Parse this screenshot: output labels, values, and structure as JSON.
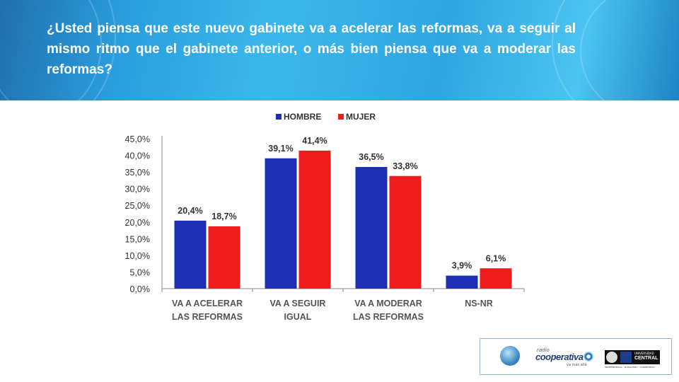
{
  "header": {
    "question": "¿Usted piensa que este nuevo gabinete va a acelerar las reformas, va a seguir al mismo ritmo que el gabinete anterior, o más bien piensa que va a moderar las reformas?"
  },
  "logos": {
    "cooperativa_radio": "radio",
    "cooperativa_name": "cooperativa",
    "cooperativa_tag": "va más allá",
    "ucentral_top": "UNIVERSIDAD",
    "ucentral_name": "CENTRAL",
    "ucentral_sub": "INDEPENDENCIA · PLURALISMO · COMPROMISO"
  },
  "colors": {
    "hombre": "#1c2fb3",
    "mujer": "#ee1c1c",
    "axis": "#888888",
    "text": "#333333"
  },
  "chart_data": {
    "type": "bar",
    "categories": [
      [
        "VA A ACELERAR",
        "LAS  REFORMAS"
      ],
      [
        "VA A SEGUIR",
        "IGUAL"
      ],
      [
        "VA A MODERAR",
        "LAS  REFORMAS"
      ],
      [
        "NS-NR"
      ]
    ],
    "series": [
      {
        "name": "HOMBRE",
        "values": [
          20.4,
          39.1,
          36.5,
          3.9
        ],
        "labels": [
          "20,4%",
          "39,1%",
          "36,5%",
          "3,9%"
        ]
      },
      {
        "name": "MUJER",
        "values": [
          18.7,
          41.4,
          33.8,
          6.1
        ],
        "labels": [
          "18,7%",
          "41,4%",
          "33,8%",
          "6,1%"
        ]
      }
    ],
    "yticks": [
      "0,0%",
      "5,0%",
      "10,0%",
      "15,0%",
      "20,0%",
      "25,0%",
      "30,0%",
      "35,0%",
      "40,0%",
      "45,0%"
    ],
    "ylim": [
      0,
      45
    ],
    "legend_position": "top",
    "grid": false
  }
}
